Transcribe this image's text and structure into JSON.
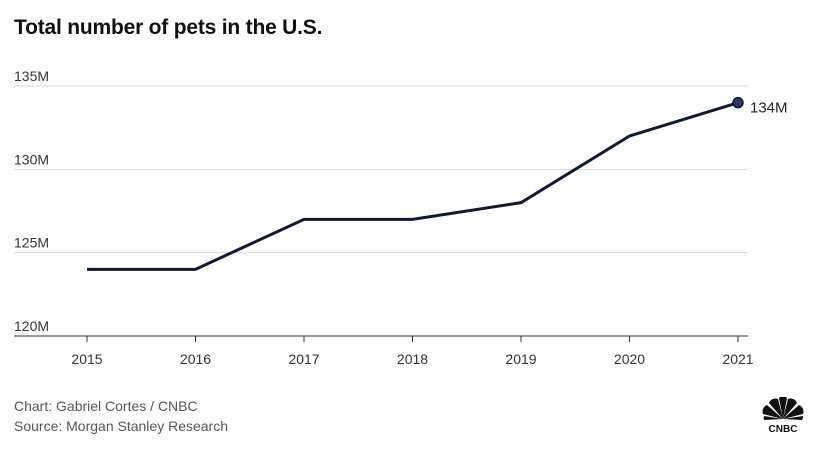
{
  "title": "Total number of pets in the U.S.",
  "footer": {
    "credit": "Chart: Gabriel Cortes / CNBC",
    "source": "Source: Morgan Stanley Research"
  },
  "logo": {
    "label": "CNBC",
    "icon": "cnbc-peacock-logo"
  },
  "colors": {
    "line": "#0f1b33",
    "grid": "#d9d9d9",
    "axis": "#333333"
  },
  "chart_data": {
    "type": "line",
    "title": "Total number of pets in the U.S.",
    "xlabel": "",
    "ylabel": "",
    "categories": [
      "2015",
      "2016",
      "2017",
      "2018",
      "2019",
      "2020",
      "2021"
    ],
    "series": [
      {
        "values": [
          124,
          124,
          127,
          127,
          128,
          132,
          134
        ]
      }
    ],
    "ylim": [
      120,
      135
    ],
    "yticks": [
      120,
      125,
      130,
      135
    ],
    "ytick_labels": [
      "120M",
      "125M",
      "130M",
      "135M"
    ],
    "grid": true,
    "end_label": "134M"
  }
}
